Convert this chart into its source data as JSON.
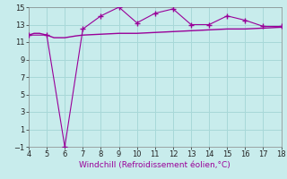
{
  "xlabel": "Windchill (Refroidissement éolien,°C)",
  "bg_color": "#c8ecec",
  "grid_color": "#a8d8d8",
  "line_color": "#990099",
  "xlim": [
    4,
    18
  ],
  "ylim": [
    -1,
    15
  ],
  "xticks": [
    4,
    5,
    6,
    7,
    8,
    9,
    10,
    11,
    12,
    13,
    14,
    15,
    16,
    17,
    18
  ],
  "yticks": [
    -1,
    1,
    3,
    5,
    7,
    9,
    11,
    13,
    15
  ],
  "smooth_x": [
    4,
    4.3,
    4.6,
    5.0,
    5.4,
    5.7,
    6.0,
    6.3,
    6.6,
    7.0,
    7.5,
    8.0,
    9.0,
    10.0,
    11.0,
    12.0,
    13.0,
    14.0,
    15.0,
    16.0,
    17.0,
    18.0
  ],
  "smooth_y": [
    11.8,
    12.0,
    12.0,
    11.8,
    11.5,
    11.5,
    11.5,
    11.6,
    11.7,
    11.8,
    11.85,
    11.9,
    12.0,
    12.0,
    12.1,
    12.2,
    12.3,
    12.4,
    12.5,
    12.5,
    12.6,
    12.7
  ],
  "marker_x": [
    4,
    5,
    6,
    7,
    8,
    9,
    10,
    11,
    12,
    13,
    14,
    15,
    16,
    17,
    18
  ],
  "marker_y": [
    11.8,
    11.8,
    -1.0,
    12.5,
    14.0,
    15.0,
    13.2,
    14.3,
    14.8,
    13.0,
    13.0,
    14.0,
    13.5,
    12.8,
    12.8
  ],
  "tick_fontsize": 6,
  "xlabel_fontsize": 6.5
}
